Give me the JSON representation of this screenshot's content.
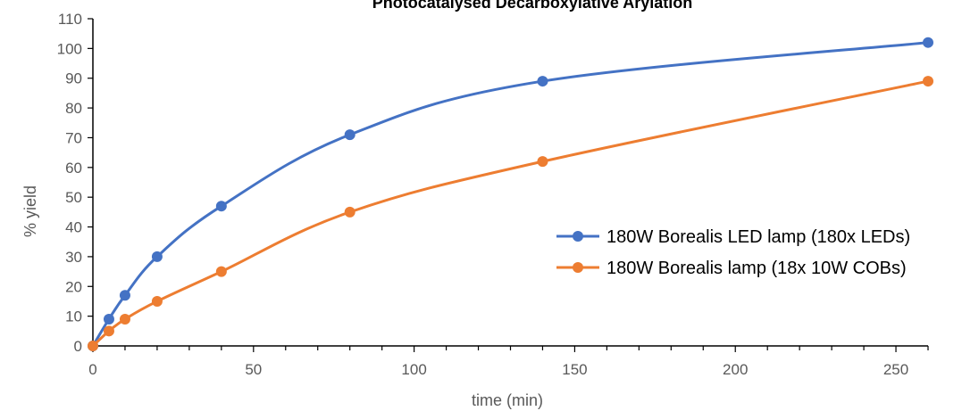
{
  "chart_data": {
    "type": "line",
    "title": "Photocatalysed Decarboxylative Arylation",
    "xlabel": "time (min)",
    "ylabel": "% yield",
    "xlim": [
      0,
      260
    ],
    "ylim": [
      0,
      110
    ],
    "xticks": [
      0,
      50,
      100,
      150,
      200,
      250
    ],
    "yticks": [
      0,
      10,
      20,
      30,
      40,
      50,
      60,
      70,
      80,
      90,
      100,
      110
    ],
    "grid": false,
    "legend_position": "right",
    "series": [
      {
        "name": "180W Borealis LED lamp (180x LEDs)",
        "color": "#4472C4",
        "x": [
          0,
          5,
          10,
          20,
          40,
          80,
          140,
          260
        ],
        "y": [
          0,
          9,
          17,
          30,
          47,
          71,
          89,
          102
        ]
      },
      {
        "name": "180W Borealis lamp (18x 10W COBs)",
        "color": "#ED7D31",
        "x": [
          0,
          5,
          10,
          20,
          40,
          80,
          140,
          260
        ],
        "y": [
          0,
          5,
          9,
          15,
          25,
          45,
          62,
          89
        ]
      }
    ]
  }
}
